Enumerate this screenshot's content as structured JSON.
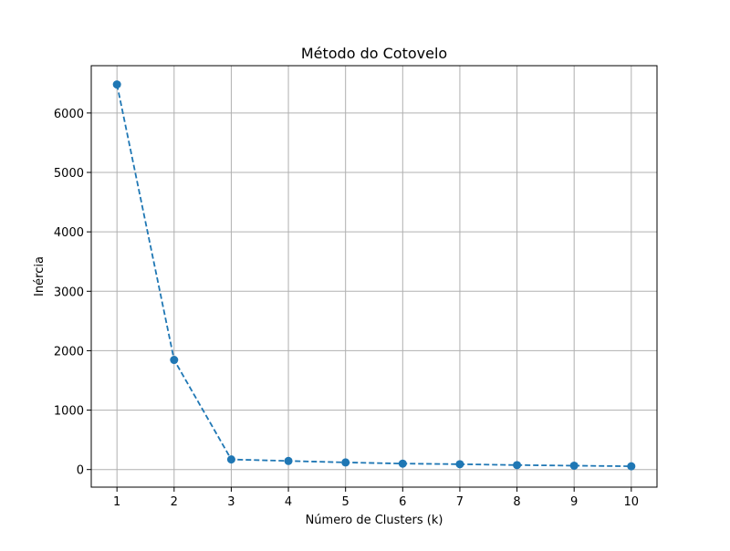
{
  "chart_data": {
    "type": "line",
    "title": "Método do Cotovelo",
    "xlabel": "Número de Clusters (k)",
    "ylabel": "Inércia",
    "x": [
      1,
      2,
      3,
      4,
      5,
      6,
      7,
      8,
      9,
      10
    ],
    "series": [
      {
        "values": [
          6480,
          1845,
          170,
          145,
          120,
          100,
          90,
          75,
          65,
          55
        ],
        "color": "#1f77b4",
        "line_style": "dashed",
        "marker": "circle"
      }
    ],
    "x_ticks": [
      "1",
      "2",
      "3",
      "4",
      "5",
      "6",
      "7",
      "8",
      "9",
      "10"
    ],
    "y_ticks": [
      "0",
      "1000",
      "2000",
      "3000",
      "4000",
      "5000",
      "6000"
    ],
    "xlim": [
      0.55,
      10.45
    ],
    "ylim": [
      -296.25,
      6796.25
    ],
    "grid": true,
    "colors": {
      "grid": "#b0b0b0",
      "axes": "#000000"
    }
  }
}
